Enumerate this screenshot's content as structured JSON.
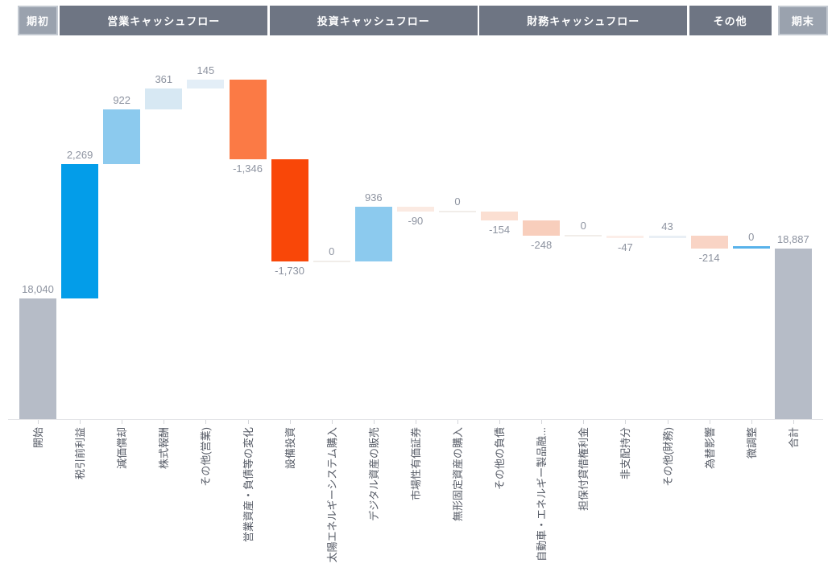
{
  "header": {
    "groups": [
      {
        "label": "期初",
        "style": "light",
        "span": 1
      },
      {
        "label": "営業キャッシュフロー",
        "style": "dark",
        "span": 5
      },
      {
        "label": "投資キャッシュフロー",
        "style": "dark",
        "span": 5
      },
      {
        "label": "財務キャッシュフロー",
        "style": "dark",
        "span": 5
      },
      {
        "label": "その他",
        "style": "dark",
        "span": 2
      },
      {
        "label": "期末",
        "style": "light",
        "span": 1
      }
    ],
    "colors": {
      "dark_bg": "#6e7583",
      "light_bg": "#9aa2ae",
      "light_border": "#c3c9d1",
      "text": "#ffffff"
    }
  },
  "chart_data": {
    "type": "bar",
    "subtype": "waterfall",
    "title": "",
    "xlabel": "",
    "ylabel": "",
    "grid": false,
    "legend": false,
    "ylim": [
      16000,
      22000
    ],
    "categories": [
      "開始",
      "税引前利益",
      "減価償却",
      "株式報酬",
      "その他(営業)",
      "営業資産・負債等の変化",
      "設備投資",
      "太陽エネルギーシステム購入",
      "デジタル資産の販売",
      "市場性有価証券",
      "無形固定資産の購入",
      "その他の負債",
      "自動車・エネルギー製品融...",
      "担保付貸借権利金",
      "非支配持分",
      "その他(財務)",
      "為替影響",
      "微調整",
      "合計"
    ],
    "items": [
      {
        "label": "開始",
        "value": 18040,
        "display": "18,040",
        "kind": "total",
        "color": "#b6bcc7",
        "group": "期初"
      },
      {
        "label": "税引前利益",
        "value": 2269,
        "display": "2,269",
        "kind": "relative",
        "color": "#039de9",
        "group": "営業キャッシュフロー"
      },
      {
        "label": "減価償却",
        "value": 922,
        "display": "922",
        "kind": "relative",
        "color": "#8ccaee",
        "group": "営業キャッシュフロー"
      },
      {
        "label": "株式報酬",
        "value": 361,
        "display": "361",
        "kind": "relative",
        "color": "#d7e8f3",
        "group": "営業キャッシュフロー"
      },
      {
        "label": "その他(営業)",
        "value": 145,
        "display": "145",
        "kind": "relative",
        "color": "#e3eef7",
        "group": "営業キャッシュフロー"
      },
      {
        "label": "営業資産・負債等の変化",
        "value": -1346,
        "display": "-1,346",
        "kind": "relative",
        "color": "#fb7a45",
        "group": "営業キャッシュフロー"
      },
      {
        "label": "設備投資",
        "value": -1730,
        "display": "-1,730",
        "kind": "relative",
        "color": "#f94708",
        "group": "投資キャッシュフロー"
      },
      {
        "label": "太陽エネルギーシステム購入",
        "value": 0,
        "display": "0",
        "kind": "relative",
        "color": "#f1ede9",
        "group": "投資キャッシュフロー"
      },
      {
        "label": "デジタル資産の販売",
        "value": 936,
        "display": "936",
        "kind": "relative",
        "color": "#8ccaee",
        "group": "投資キャッシュフロー"
      },
      {
        "label": "市場性有価証券",
        "value": -90,
        "display": "-90",
        "kind": "relative",
        "color": "#fbeae2",
        "group": "投資キャッシュフロー"
      },
      {
        "label": "無形固定資産の購入",
        "value": 0,
        "display": "0",
        "kind": "relative",
        "color": "#f1ede9",
        "group": "投資キャッシュフロー"
      },
      {
        "label": "その他の負債",
        "value": -154,
        "display": "-154",
        "kind": "relative",
        "color": "#fbdfd2",
        "group": "財務キャッシュフロー"
      },
      {
        "label": "自動車・エネルギー製品融...",
        "value": -248,
        "display": "-248",
        "kind": "relative",
        "color": "#f8cebc",
        "group": "財務キャッシュフロー"
      },
      {
        "label": "担保付貸借権利金",
        "value": 0,
        "display": "0",
        "kind": "relative",
        "color": "#f1ede9",
        "group": "財務キャッシュフロー"
      },
      {
        "label": "非支配持分",
        "value": -47,
        "display": "-47",
        "kind": "relative",
        "color": "#fceee9",
        "group": "財務キャッシュフロー"
      },
      {
        "label": "その他(財務)",
        "value": 43,
        "display": "43",
        "kind": "relative",
        "color": "#e9eff5",
        "group": "財務キャッシュフロー"
      },
      {
        "label": "為替影響",
        "value": -214,
        "display": "-214",
        "kind": "relative",
        "color": "#f9d4c5",
        "group": "その他"
      },
      {
        "label": "微調整",
        "value": 0,
        "display": "0",
        "kind": "relative",
        "color": "#58b2ea",
        "accent_line": true,
        "group": "その他"
      },
      {
        "label": "合計",
        "value": 18887,
        "display": "18,887",
        "kind": "total",
        "color": "#b6bcc7",
        "group": "期末"
      }
    ],
    "axis": {
      "baseline_value": 16000,
      "line_color": "#e4e5e8",
      "tick_color": "#d4d6da"
    },
    "value_label_color": "#8d93a0",
    "category_label_color": "#565b66"
  }
}
